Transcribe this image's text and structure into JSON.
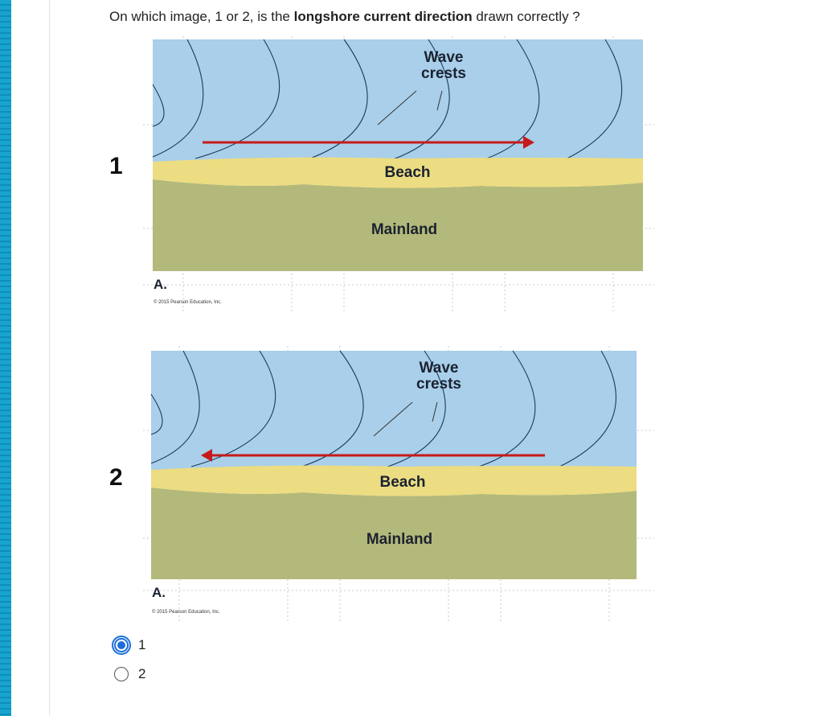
{
  "question": {
    "prefix": "On which image, 1 or 2, is the ",
    "bold": "longshore current direction",
    "suffix": " drawn correctly ?"
  },
  "images": [
    {
      "number": "1",
      "labels": {
        "wave_crests_line1": "Wave",
        "wave_crests_line2": "crests",
        "beach": "Beach",
        "mainland": "Mainland",
        "figure_letter": "A.",
        "copyright": "© 2015 Pearson Education, Inc."
      },
      "arrow_direction": "right"
    },
    {
      "number": "2",
      "labels": {
        "wave_crests_line1": "Wave",
        "wave_crests_line2": "crests",
        "beach": "Beach",
        "mainland": "Mainland",
        "figure_letter": "A.",
        "copyright": "© 2015 Pearson Education, Inc."
      },
      "arrow_direction": "left"
    }
  ],
  "options": [
    {
      "label": "1",
      "selected": true
    },
    {
      "label": "2",
      "selected": false
    }
  ],
  "colors": {
    "water": "#a9cfea",
    "beach": "#ecdc82",
    "mainland": "#b3b97a",
    "arrow": "#c51b1b",
    "accent": "#1d6fd8"
  }
}
